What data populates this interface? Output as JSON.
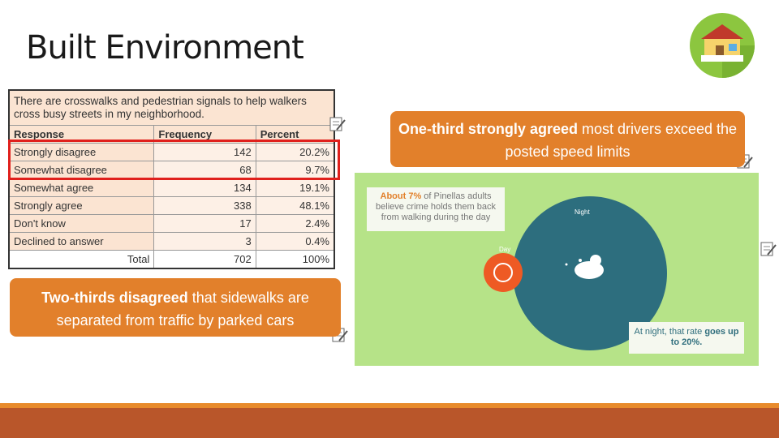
{
  "header": {
    "title": "Built Environment"
  },
  "table": {
    "caption": "There are crosswalks and pedestrian signals to help walkers cross busy streets in my neighborhood.",
    "columns": [
      "Response",
      "Frequency",
      "Percent"
    ],
    "rows": [
      [
        "Strongly disagree",
        "142",
        "20.2%"
      ],
      [
        "Somewhat disagree",
        "68",
        "9.7%"
      ],
      [
        "Somewhat agree",
        "134",
        "19.1%"
      ],
      [
        "Strongly agree",
        "338",
        "48.1%"
      ],
      [
        "Don't know",
        "17",
        "2.4%"
      ],
      [
        "Declined to answer",
        "3",
        "0.4%"
      ]
    ],
    "total": [
      "Total",
      "702",
      "100%"
    ]
  },
  "callouts": [
    {
      "bold": "Two-thirds disagreed",
      "text": " that sidewalks are separated from traffic by parked cars"
    },
    {
      "bold": "One-third strongly agreed",
      "text": " most drivers exceed the posted speed limits"
    }
  ],
  "infographic": {
    "day_bold": "About 7%",
    "day_text": " of Pinellas adults believe crime holds them back from walking during the day",
    "night_text": "At night, that rate ",
    "night_bold": "goes up to 20%.",
    "night_label": "Night",
    "day_label": "Day"
  }
}
